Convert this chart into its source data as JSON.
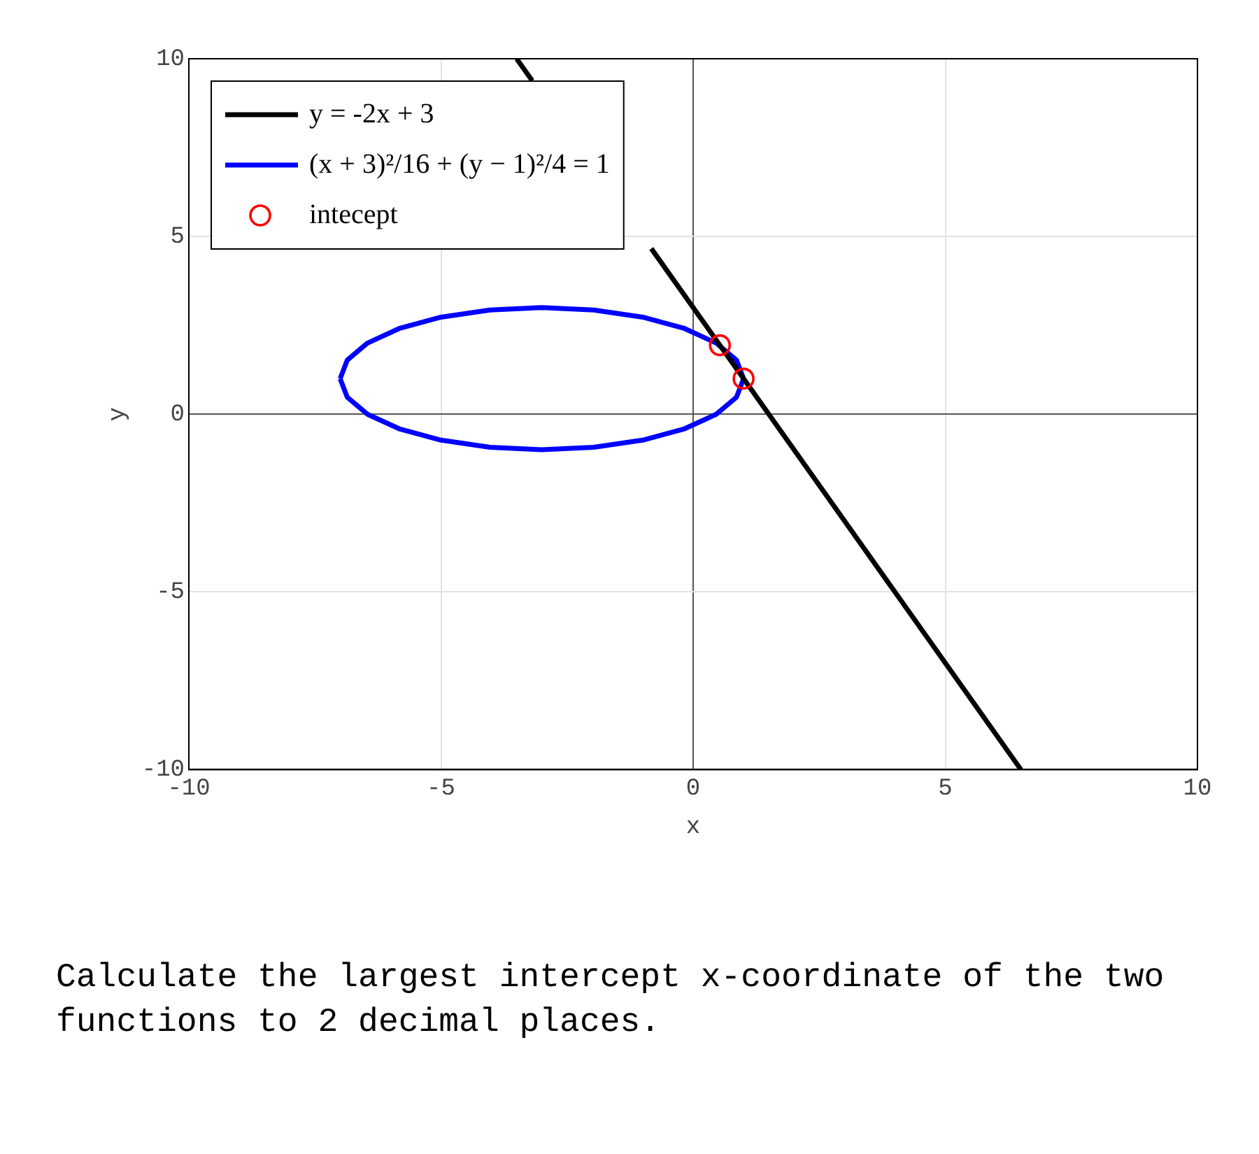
{
  "chart_data": {
    "type": "line",
    "xlabel": "x",
    "ylabel": "y",
    "xlim": [
      -10,
      10
    ],
    "ylim": [
      -10,
      10
    ],
    "xticks": [
      -10,
      -5,
      0,
      5,
      10
    ],
    "yticks": [
      -10,
      -5,
      0,
      5,
      10
    ],
    "grid": true,
    "legend": "top left",
    "series": [
      {
        "name": "y = -2x + 3",
        "color": "#000000",
        "marker": "none",
        "x": [
          -3.5,
          -3.19,
          -2,
          -0.83,
          6.5
        ],
        "values": [
          10,
          9.38,
          null,
          4.66,
          -10
        ]
      },
      {
        "name": "(x + 3)²/16 + (y − 1)²/4 = 1",
        "color": "#0000ff",
        "marker": "none",
        "x": [
          1,
          0.86,
          0.46,
          -0.17,
          -1,
          -1.97,
          -3,
          -4.03,
          -5,
          -5.83,
          -6.46,
          -6.86,
          -7,
          null,
          -7,
          -6.86,
          -6.46,
          -5.83,
          -5,
          -4.03,
          -3,
          -1.97,
          -1,
          -0.17,
          0.46,
          0.86,
          1
        ],
        "values": [
          1,
          1.52,
          2,
          2.41,
          2.73,
          2.93,
          3,
          2.93,
          2.73,
          2.41,
          2,
          1.52,
          1,
          null,
          1,
          0.48,
          0,
          -0.41,
          -0.73,
          -0.93,
          -1,
          -0.93,
          -0.73,
          -0.41,
          0,
          0.48,
          1
        ]
      },
      {
        "name": "intecept",
        "color": "#ff0000",
        "type": "scatter",
        "marker": "circle",
        "x": [
          0.53,
          1
        ],
        "values": [
          1.94,
          1
        ]
      }
    ],
    "annotations": [
      "Calculate the largest intercept x-coordinate of the two functions to 2 decimal places."
    ]
  }
}
